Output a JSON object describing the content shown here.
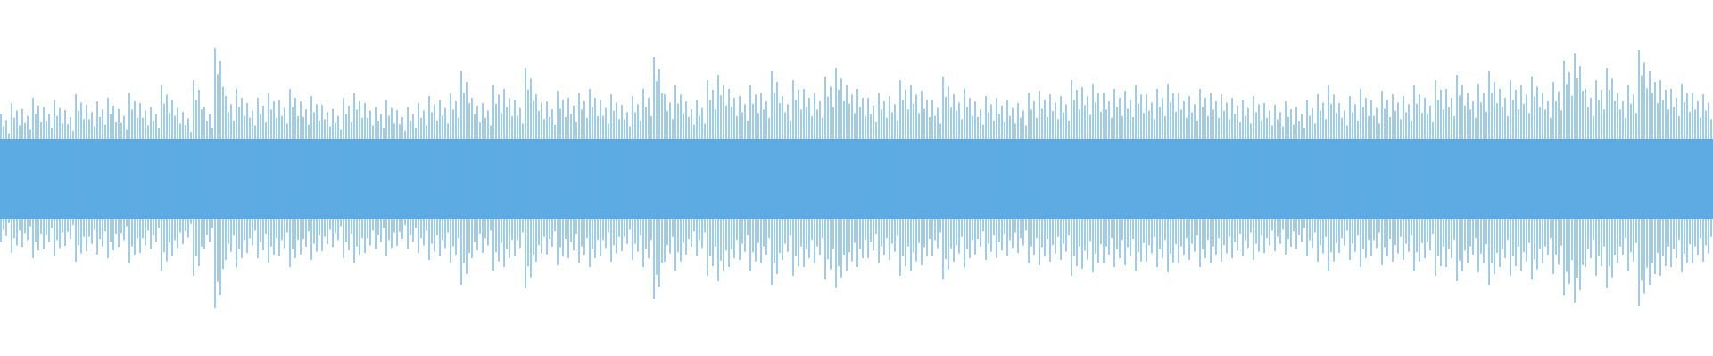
{
  "chart_data": {
    "type": "waveform",
    "color": "#5dabe2",
    "ylim": [
      -1,
      1
    ],
    "values": [
      0.36,
      0.42,
      0.39,
      0.45,
      0.4,
      0.44,
      0.38,
      0.47,
      0.41,
      0.43,
      0.45,
      0.39,
      0.48,
      0.42,
      0.4,
      0.52,
      0.44,
      0.37,
      0.55,
      0.4,
      0.73,
      0.46,
      0.5,
      0.42,
      0.45,
      0.48,
      0.44,
      0.5,
      0.43,
      0.46,
      0.41,
      0.39,
      0.45,
      0.48,
      0.42,
      0.4,
      0.44,
      0.38,
      0.4,
      0.42,
      0.46,
      0.44,
      0.48,
      0.6,
      0.45,
      0.42,
      0.52,
      0.5,
      0.44,
      0.62,
      0.47,
      0.43,
      0.49,
      0.45,
      0.48,
      0.5,
      0.44,
      0.47,
      0.41,
      0.46,
      0.5,
      0.68,
      0.47,
      0.52,
      0.43,
      0.44,
      0.55,
      0.58,
      0.5,
      0.46,
      0.52,
      0.48,
      0.6,
      0.46,
      0.55,
      0.5,
      0.48,
      0.57,
      0.62,
      0.52,
      0.5,
      0.45,
      0.48,
      0.46,
      0.55,
      0.52,
      0.49,
      0.44,
      0.57,
      0.47,
      0.5,
      0.43,
      0.46,
      0.45,
      0.44,
      0.42,
      0.48,
      0.49,
      0.47,
      0.46,
      0.55,
      0.51,
      0.53,
      0.48,
      0.5,
      0.49,
      0.52,
      0.47,
      0.5,
      0.53,
      0.48,
      0.46,
      0.5,
      0.48,
      0.47,
      0.45,
      0.44,
      0.46,
      0.42,
      0.41,
      0.43,
      0.4,
      0.44,
      0.47,
      0.52,
      0.42,
      0.46,
      0.5,
      0.44,
      0.49,
      0.47,
      0.46,
      0.52,
      0.45,
      0.55,
      0.5,
      0.58,
      0.48,
      0.53,
      0.6,
      0.5,
      0.55,
      0.52,
      0.57,
      0.48,
      0.54,
      0.66,
      0.7,
      0.5,
      0.55,
      0.62,
      0.48,
      0.52,
      0.72,
      0.6,
      0.55,
      0.5,
      0.53,
      0.48,
      0.47
    ]
  }
}
